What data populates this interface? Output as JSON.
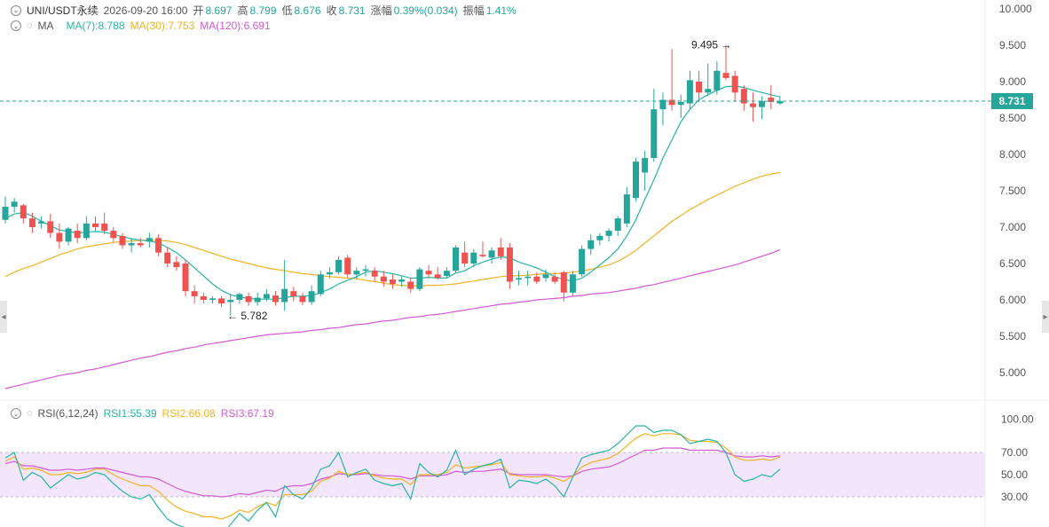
{
  "header": {
    "pair": "UNI/USDT永续",
    "datetime": "2026-09-20 16:00",
    "open_label": "开",
    "open": "8.697",
    "high_label": "高",
    "high": "8.799",
    "low_label": "低",
    "low": "8.676",
    "close_label": "收",
    "close": "8.731",
    "change_label": "涨幅",
    "change": "0.39%(0.034)",
    "amplitude_label": "振幅",
    "amplitude": "1.41%"
  },
  "ma": {
    "label": "MA",
    "ma7": "MA(7):8.788",
    "ma30": "MA(30):7.753",
    "ma120": "MA(120):6.691"
  },
  "rsi": {
    "label": "RSI(6,12,24)",
    "rsi1": "RSI1:55.39",
    "rsi2": "RSI2:66.08",
    "rsi3": "RSI3:67.19"
  },
  "current_price": "8.731",
  "price_axis": [
    "10.000",
    "9.500",
    "9.000",
    "8.500",
    "8.000",
    "7.500",
    "7.000",
    "6.500",
    "6.000",
    "5.500",
    "5.000"
  ],
  "rsi_axis": [
    "100.00",
    "70.00",
    "50.00",
    "30.00"
  ],
  "annotations": {
    "high_mark": "9.495 →",
    "low_mark": "← 5.782"
  },
  "colors": {
    "up": "#26a69a",
    "down": "#ef5350",
    "ma7": "#26b5a6",
    "ma30": "#f0b323",
    "ma120": "#d35ad5",
    "rsi_band": "#f3e5fa"
  },
  "chart_data": {
    "type": "candlestick",
    "ylim": [
      4.6,
      10.1
    ],
    "candles": [
      {
        "o": 7.1,
        "h": 7.42,
        "l": 7.05,
        "c": 7.28
      },
      {
        "o": 7.28,
        "h": 7.4,
        "l": 7.2,
        "c": 7.35
      },
      {
        "o": 7.3,
        "h": 7.32,
        "l": 7.05,
        "c": 7.12
      },
      {
        "o": 7.12,
        "h": 7.2,
        "l": 6.92,
        "c": 7.0
      },
      {
        "o": 7.05,
        "h": 7.15,
        "l": 6.98,
        "c": 7.08
      },
      {
        "o": 7.08,
        "h": 7.18,
        "l": 6.85,
        "c": 6.92
      },
      {
        "o": 6.92,
        "h": 7.05,
        "l": 6.7,
        "c": 6.8
      },
      {
        "o": 6.8,
        "h": 7.0,
        "l": 6.75,
        "c": 6.98
      },
      {
        "o": 6.95,
        "h": 7.05,
        "l": 6.78,
        "c": 6.85
      },
      {
        "o": 6.85,
        "h": 7.15,
        "l": 6.82,
        "c": 7.05
      },
      {
        "o": 7.05,
        "h": 7.15,
        "l": 6.95,
        "c": 7.0
      },
      {
        "o": 7.05,
        "h": 7.2,
        "l": 6.9,
        "c": 6.95
      },
      {
        "o": 6.95,
        "h": 7.0,
        "l": 6.8,
        "c": 6.85
      },
      {
        "o": 6.88,
        "h": 6.92,
        "l": 6.7,
        "c": 6.75
      },
      {
        "o": 6.75,
        "h": 6.85,
        "l": 6.65,
        "c": 6.78
      },
      {
        "o": 6.78,
        "h": 6.85,
        "l": 6.72,
        "c": 6.75
      },
      {
        "o": 6.8,
        "h": 6.92,
        "l": 6.72,
        "c": 6.85
      },
      {
        "o": 6.85,
        "h": 6.9,
        "l": 6.6,
        "c": 6.65
      },
      {
        "o": 6.65,
        "h": 6.72,
        "l": 6.45,
        "c": 6.5
      },
      {
        "o": 6.52,
        "h": 6.6,
        "l": 6.4,
        "c": 6.45
      },
      {
        "o": 6.5,
        "h": 6.55,
        "l": 6.05,
        "c": 6.12
      },
      {
        "o": 6.12,
        "h": 6.2,
        "l": 5.95,
        "c": 6.05
      },
      {
        "o": 6.05,
        "h": 6.1,
        "l": 5.95,
        "c": 6.0
      },
      {
        "o": 6.0,
        "h": 6.05,
        "l": 5.95,
        "c": 6.02
      },
      {
        "o": 6.02,
        "h": 6.05,
        "l": 5.9,
        "c": 5.95
      },
      {
        "o": 5.97,
        "h": 6.08,
        "l": 5.78,
        "c": 6.0
      },
      {
        "o": 6.0,
        "h": 6.1,
        "l": 5.95,
        "c": 6.08
      },
      {
        "o": 6.05,
        "h": 6.1,
        "l": 5.92,
        "c": 5.97
      },
      {
        "o": 5.97,
        "h": 6.1,
        "l": 5.92,
        "c": 6.03
      },
      {
        "o": 6.02,
        "h": 6.15,
        "l": 5.98,
        "c": 6.08
      },
      {
        "o": 6.06,
        "h": 6.12,
        "l": 5.92,
        "c": 5.97
      },
      {
        "o": 5.97,
        "h": 6.55,
        "l": 5.85,
        "c": 6.15
      },
      {
        "o": 6.12,
        "h": 6.18,
        "l": 5.98,
        "c": 6.05
      },
      {
        "o": 6.05,
        "h": 6.1,
        "l": 5.93,
        "c": 5.97
      },
      {
        "o": 5.97,
        "h": 6.2,
        "l": 5.93,
        "c": 6.12
      },
      {
        "o": 6.08,
        "h": 6.4,
        "l": 6.05,
        "c": 6.35
      },
      {
        "o": 6.35,
        "h": 6.45,
        "l": 6.3,
        "c": 6.38
      },
      {
        "o": 6.38,
        "h": 6.6,
        "l": 6.35,
        "c": 6.55
      },
      {
        "o": 6.58,
        "h": 6.62,
        "l": 6.3,
        "c": 6.35
      },
      {
        "o": 6.35,
        "h": 6.45,
        "l": 6.28,
        "c": 6.4
      },
      {
        "o": 6.4,
        "h": 6.48,
        "l": 6.32,
        "c": 6.42
      },
      {
        "o": 6.4,
        "h": 6.45,
        "l": 6.25,
        "c": 6.32
      },
      {
        "o": 6.32,
        "h": 6.4,
        "l": 6.18,
        "c": 6.25
      },
      {
        "o": 6.28,
        "h": 6.35,
        "l": 6.15,
        "c": 6.22
      },
      {
        "o": 6.25,
        "h": 6.32,
        "l": 6.18,
        "c": 6.28
      },
      {
        "o": 6.25,
        "h": 6.3,
        "l": 6.1,
        "c": 6.15
      },
      {
        "o": 6.15,
        "h": 6.45,
        "l": 6.12,
        "c": 6.42
      },
      {
        "o": 6.4,
        "h": 6.48,
        "l": 6.3,
        "c": 6.35
      },
      {
        "o": 6.35,
        "h": 6.45,
        "l": 6.28,
        "c": 6.3
      },
      {
        "o": 6.33,
        "h": 6.45,
        "l": 6.3,
        "c": 6.4
      },
      {
        "o": 6.4,
        "h": 6.75,
        "l": 6.38,
        "c": 6.72
      },
      {
        "o": 6.65,
        "h": 6.8,
        "l": 6.45,
        "c": 6.5
      },
      {
        "o": 6.5,
        "h": 6.7,
        "l": 6.45,
        "c": 6.65
      },
      {
        "o": 6.62,
        "h": 6.8,
        "l": 6.58,
        "c": 6.6
      },
      {
        "o": 6.58,
        "h": 6.72,
        "l": 6.5,
        "c": 6.68
      },
      {
        "o": 6.72,
        "h": 6.85,
        "l": 6.55,
        "c": 6.6
      },
      {
        "o": 6.72,
        "h": 6.78,
        "l": 6.15,
        "c": 6.25
      },
      {
        "o": 6.28,
        "h": 6.4,
        "l": 6.2,
        "c": 6.3
      },
      {
        "o": 6.3,
        "h": 6.4,
        "l": 6.2,
        "c": 6.32
      },
      {
        "o": 6.32,
        "h": 6.38,
        "l": 6.22,
        "c": 6.25
      },
      {
        "o": 6.3,
        "h": 6.42,
        "l": 6.25,
        "c": 6.35
      },
      {
        "o": 6.32,
        "h": 6.38,
        "l": 6.22,
        "c": 6.25
      },
      {
        "o": 6.38,
        "h": 6.4,
        "l": 5.98,
        "c": 6.1
      },
      {
        "o": 6.1,
        "h": 6.4,
        "l": 6.05,
        "c": 6.35
      },
      {
        "o": 6.35,
        "h": 6.75,
        "l": 6.32,
        "c": 6.7
      },
      {
        "o": 6.7,
        "h": 6.9,
        "l": 6.62,
        "c": 6.82
      },
      {
        "o": 6.82,
        "h": 6.92,
        "l": 6.75,
        "c": 6.88
      },
      {
        "o": 6.88,
        "h": 6.98,
        "l": 6.8,
        "c": 6.95
      },
      {
        "o": 6.95,
        "h": 7.15,
        "l": 6.88,
        "c": 7.12
      },
      {
        "o": 7.05,
        "h": 7.55,
        "l": 7.0,
        "c": 7.45
      },
      {
        "o": 7.4,
        "h": 7.95,
        "l": 7.35,
        "c": 7.9
      },
      {
        "o": 7.75,
        "h": 8.05,
        "l": 7.5,
        "c": 7.95
      },
      {
        "o": 7.95,
        "h": 8.9,
        "l": 7.9,
        "c": 8.62
      },
      {
        "o": 8.62,
        "h": 8.85,
        "l": 8.4,
        "c": 8.75
      },
      {
        "o": 8.75,
        "h": 9.45,
        "l": 8.6,
        "c": 8.68
      },
      {
        "o": 8.68,
        "h": 8.82,
        "l": 8.5,
        "c": 8.72
      },
      {
        "o": 8.7,
        "h": 9.15,
        "l": 8.62,
        "c": 9.02
      },
      {
        "o": 9.0,
        "h": 9.15,
        "l": 8.72,
        "c": 8.85
      },
      {
        "o": 8.85,
        "h": 9.25,
        "l": 8.8,
        "c": 8.9
      },
      {
        "o": 8.88,
        "h": 9.28,
        "l": 8.82,
        "c": 9.15
      },
      {
        "o": 9.12,
        "h": 9.5,
        "l": 9.02,
        "c": 9.05
      },
      {
        "o": 9.08,
        "h": 9.15,
        "l": 8.72,
        "c": 8.85
      },
      {
        "o": 8.9,
        "h": 8.95,
        "l": 8.6,
        "c": 8.7
      },
      {
        "o": 8.7,
        "h": 8.85,
        "l": 8.45,
        "c": 8.65
      },
      {
        "o": 8.65,
        "h": 8.8,
        "l": 8.48,
        "c": 8.73
      },
      {
        "o": 8.78,
        "h": 8.95,
        "l": 8.62,
        "c": 8.72
      },
      {
        "o": 8.7,
        "h": 8.8,
        "l": 8.68,
        "c": 8.73
      }
    ],
    "ma7": [
      7.12,
      7.18,
      7.2,
      7.15,
      7.08,
      7.02,
      6.96,
      6.94,
      6.92,
      6.93,
      6.94,
      6.93,
      6.9,
      6.87,
      6.84,
      6.82,
      6.81,
      6.78,
      6.72,
      6.65,
      6.55,
      6.44,
      6.33,
      6.22,
      6.13,
      6.07,
      6.04,
      6.02,
      6.01,
      6.01,
      6.01,
      6.03,
      6.05,
      6.05,
      6.06,
      6.1,
      6.15,
      6.22,
      6.27,
      6.32,
      6.38,
      6.4,
      6.38,
      6.36,
      6.33,
      6.3,
      6.3,
      6.31,
      6.3,
      6.3,
      6.37,
      6.4,
      6.47,
      6.52,
      6.56,
      6.59,
      6.58,
      6.52,
      6.48,
      6.44,
      6.38,
      6.32,
      6.28,
      6.26,
      6.3,
      6.38,
      6.48,
      6.58,
      6.7,
      6.88,
      7.1,
      7.38,
      7.65,
      7.95,
      8.2,
      8.45,
      8.62,
      8.75,
      8.82,
      8.88,
      8.93,
      8.94,
      8.92,
      8.88,
      8.85,
      8.82,
      8.79
    ],
    "ma30": [
      6.32,
      6.38,
      6.43,
      6.47,
      6.52,
      6.57,
      6.62,
      6.66,
      6.7,
      6.73,
      6.75,
      6.77,
      6.79,
      6.8,
      6.81,
      6.82,
      6.82,
      6.82,
      6.81,
      6.79,
      6.76,
      6.72,
      6.68,
      6.64,
      6.6,
      6.56,
      6.53,
      6.5,
      6.47,
      6.44,
      6.42,
      6.4,
      6.38,
      6.36,
      6.35,
      6.33,
      6.32,
      6.31,
      6.3,
      6.29,
      6.27,
      6.25,
      6.23,
      6.21,
      6.2,
      6.19,
      6.19,
      6.2,
      6.2,
      6.21,
      6.22,
      6.24,
      6.26,
      6.28,
      6.3,
      6.32,
      6.33,
      6.33,
      6.34,
      6.35,
      6.36,
      6.36,
      6.37,
      6.38,
      6.4,
      6.42,
      6.45,
      6.48,
      6.53,
      6.6,
      6.68,
      6.78,
      6.88,
      6.98,
      7.08,
      7.16,
      7.24,
      7.31,
      7.38,
      7.44,
      7.5,
      7.56,
      7.61,
      7.66,
      7.7,
      7.73,
      7.75
    ],
    "ma120": [
      4.78,
      4.81,
      4.84,
      4.87,
      4.9,
      4.93,
      4.96,
      4.98,
      5.0,
      5.03,
      5.05,
      5.08,
      5.11,
      5.14,
      5.17,
      5.2,
      5.22,
      5.25,
      5.28,
      5.3,
      5.33,
      5.35,
      5.38,
      5.4,
      5.42,
      5.44,
      5.46,
      5.48,
      5.5,
      5.52,
      5.53,
      5.54,
      5.55,
      5.56,
      5.58,
      5.59,
      5.61,
      5.62,
      5.64,
      5.66,
      5.67,
      5.69,
      5.71,
      5.72,
      5.74,
      5.76,
      5.77,
      5.79,
      5.8,
      5.82,
      5.84,
      5.86,
      5.88,
      5.9,
      5.92,
      5.94,
      5.95,
      5.97,
      5.98,
      6.0,
      6.01,
      6.02,
      6.03,
      6.05,
      6.06,
      6.08,
      6.09,
      6.1,
      6.12,
      6.14,
      6.16,
      6.19,
      6.21,
      6.24,
      6.27,
      6.3,
      6.33,
      6.36,
      6.39,
      6.42,
      6.45,
      6.48,
      6.52,
      6.56,
      6.6,
      6.64,
      6.69
    ],
    "rsi_ylim": [
      0,
      100
    ],
    "rsi1": [
      65,
      70,
      45,
      52,
      48,
      38,
      44,
      50,
      46,
      48,
      52,
      50,
      42,
      35,
      30,
      28,
      32,
      20,
      10,
      5,
      2,
      0,
      -3,
      -2,
      -5,
      5,
      15,
      8,
      18,
      25,
      12,
      40,
      32,
      28,
      38,
      55,
      58,
      70,
      48,
      52,
      55,
      45,
      42,
      40,
      42,
      28,
      60,
      52,
      48,
      54,
      72,
      50,
      55,
      58,
      60,
      64,
      38,
      45,
      44,
      42,
      46,
      40,
      30,
      48,
      65,
      68,
      70,
      72,
      78,
      86,
      94,
      94,
      88,
      90,
      90,
      86,
      78,
      80,
      82,
      80,
      70,
      50,
      44,
      46,
      50,
      48,
      55
    ],
    "rsi2": [
      62,
      66,
      55,
      56,
      54,
      50,
      50,
      52,
      51,
      52,
      55,
      55,
      50,
      46,
      43,
      40,
      40,
      35,
      27,
      21,
      17,
      15,
      12,
      12,
      10,
      13,
      18,
      16,
      21,
      25,
      22,
      32,
      32,
      32,
      35,
      44,
      47,
      53,
      50,
      51,
      52,
      49,
      47,
      46,
      46,
      41,
      50,
      50,
      50,
      52,
      59,
      56,
      57,
      58,
      59,
      61,
      50,
      49,
      48,
      48,
      49,
      47,
      44,
      49,
      57,
      61,
      63,
      65,
      69,
      76,
      83,
      87,
      85,
      87,
      87,
      86,
      81,
      80,
      80,
      79,
      74,
      66,
      63,
      63,
      64,
      63,
      66
    ],
    "rsi3": [
      60,
      62,
      58,
      58,
      56,
      54,
      54,
      55,
      54,
      55,
      56,
      56,
      54,
      52,
      50,
      48,
      48,
      46,
      42,
      38,
      35,
      33,
      31,
      31,
      30,
      31,
      33,
      32,
      34,
      36,
      35,
      39,
      40,
      40,
      42,
      46,
      48,
      51,
      50,
      50,
      51,
      50,
      49,
      49,
      48,
      46,
      49,
      49,
      49,
      50,
      53,
      52,
      53,
      53,
      54,
      55,
      51,
      50,
      50,
      50,
      50,
      49,
      48,
      49,
      53,
      55,
      56,
      57,
      60,
      64,
      68,
      72,
      72,
      74,
      74,
      74,
      72,
      72,
      72,
      72,
      70,
      67,
      66,
      66,
      67,
      66,
      67
    ]
  }
}
